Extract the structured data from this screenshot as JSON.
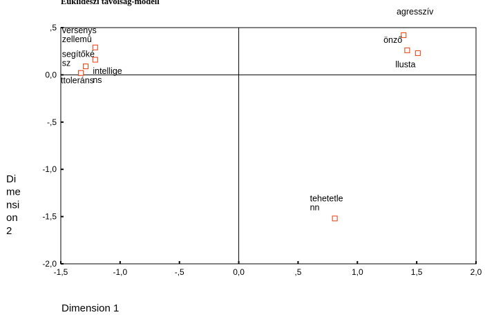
{
  "chart_data": {
    "type": "scatter",
    "title": "Euklideszi távolság-modell",
    "xlabel": "Dimension 1",
    "ylabel_lines": [
      "Di",
      "me",
      "nsi",
      "on",
      "2"
    ],
    "xlim": [
      -1.5,
      2.0
    ],
    "ylim": [
      -2.0,
      0.5
    ],
    "x_ticks": [
      {
        "value": -1.5,
        "label": "-1,5"
      },
      {
        "value": -1.0,
        "label": "-1,0"
      },
      {
        "value": -0.5,
        "label": "-,5"
      },
      {
        "value": 0.0,
        "label": "0,0"
      },
      {
        "value": 0.5,
        "label": ",5"
      },
      {
        "value": 1.0,
        "label": "1,0"
      },
      {
        "value": 1.5,
        "label": "1,5"
      },
      {
        "value": 2.0,
        "label": "2,0"
      }
    ],
    "y_ticks": [
      {
        "value": 0.5,
        "label": ",5"
      },
      {
        "value": 0.0,
        "label": "0,0"
      },
      {
        "value": -0.5,
        "label": "-,5"
      },
      {
        "value": -1.0,
        "label": "-1,0"
      },
      {
        "value": -1.5,
        "label": "-1,5"
      },
      {
        "value": -2.0,
        "label": "-2,0"
      }
    ],
    "reference_lines": {
      "x": 0.0,
      "y": 0.0
    },
    "marker_color": "#e8491d",
    "points": [
      {
        "x": -1.21,
        "y": 0.29,
        "label_lines": [
          "versenys",
          "zellemû"
        ],
        "label_pos": [
          -1.49,
          0.44
        ]
      },
      {
        "x": -1.21,
        "y": 0.16,
        "label_lines": [
          "segítőké",
          "sz"
        ],
        "label_pos": [
          -1.49,
          0.19
        ]
      },
      {
        "x": -1.29,
        "y": 0.09,
        "label_lines": [],
        "label_pos": [
          -1.29,
          0.09
        ]
      },
      {
        "x": -1.33,
        "y": 0.02,
        "label_lines": [
          "intellige",
          "ns"
        ],
        "label_pos": [
          -1.23,
          0.01
        ]
      },
      {
        "x": -1.33,
        "y": 0.02,
        "label_lines": [
          "ttoleráns"
        ],
        "label_pos": [
          -1.5,
          -0.09
        ]
      },
      {
        "x": 1.39,
        "y": 0.42,
        "label_lines": [
          "agresszív"
        ],
        "label_pos": [
          1.33,
          0.64
        ]
      },
      {
        "x": 1.42,
        "y": 0.26,
        "label_lines": [
          "önző"
        ],
        "label_pos": [
          1.22,
          0.34
        ]
      },
      {
        "x": 1.51,
        "y": 0.23,
        "label_lines": [
          "llusta"
        ],
        "label_pos": [
          1.32,
          0.08
        ]
      },
      {
        "x": 0.81,
        "y": -1.52,
        "label_lines": [
          "tehetetle",
          "nn"
        ],
        "label_pos": [
          0.6,
          -1.34
        ]
      }
    ]
  }
}
